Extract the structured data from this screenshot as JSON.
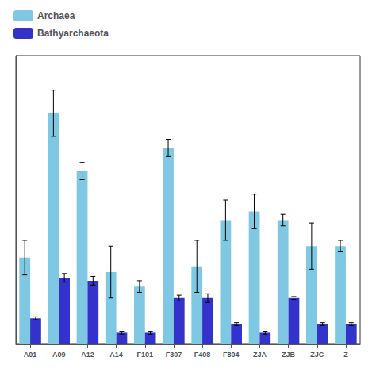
{
  "chart_data": {
    "type": "bar",
    "categories": [
      "A01",
      "A09",
      "A12",
      "A14",
      "F101",
      "F307",
      "F408",
      "F804",
      "ZJA",
      "ZJB",
      "ZJC",
      "Z"
    ],
    "series": [
      {
        "name": "Archaea",
        "color": "#7ec8e3",
        "values": [
          0.3,
          0.8,
          0.6,
          0.25,
          0.2,
          0.68,
          0.27,
          0.43,
          0.46,
          0.43,
          0.34,
          0.34
        ],
        "errors": [
          0.06,
          0.08,
          0.03,
          0.09,
          0.02,
          0.03,
          0.09,
          0.07,
          0.06,
          0.02,
          0.08,
          0.02
        ]
      },
      {
        "name": "Bathyarchaeota",
        "color": "#3333cc",
        "values": [
          0.09,
          0.23,
          0.22,
          0.04,
          0.04,
          0.16,
          0.16,
          0.07,
          0.04,
          0.16,
          0.07,
          0.07
        ],
        "errors": [
          0.005,
          0.015,
          0.015,
          0.005,
          0.005,
          0.01,
          0.015,
          0.005,
          0.005,
          0.005,
          0.005,
          0.005
        ]
      }
    ],
    "ylim": [
      0,
      1.0
    ],
    "tick_labels": "x",
    "grid": false,
    "legend": "upper left"
  }
}
